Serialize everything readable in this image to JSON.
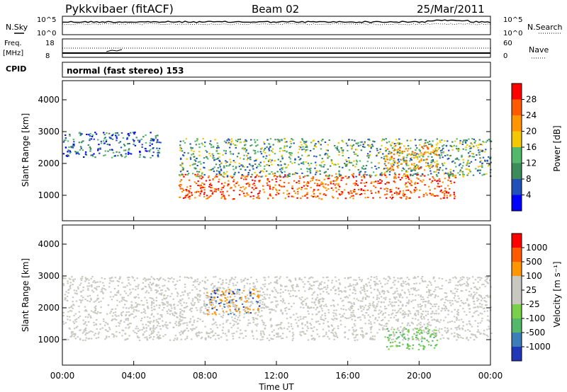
{
  "header": {
    "station": "Pykkvibaer (fitACF)",
    "beam": "Beam 02",
    "date": "25/Mar/2011"
  },
  "noise_panel": {
    "left_label": "N.Sky",
    "right_label": "N.Search",
    "left_ticks": [
      "10^5",
      "10^0"
    ],
    "right_ticks": [
      "10^5",
      "10^0"
    ]
  },
  "freq_panel": {
    "left_label_1": "Freq.",
    "left_label_2": "[MHz]",
    "right_label": "Nave",
    "left_ticks": [
      "18",
      "8"
    ],
    "right_ticks": [
      "60",
      "0"
    ]
  },
  "cpid": {
    "label": "CPID",
    "mode": "normal (fast stereo) 153"
  },
  "colors": {
    "power_scale": [
      "#0000ff",
      "#2050b8",
      "#3c8c5a",
      "#54b86a",
      "#f4c800",
      "#ff9600",
      "#ff5a00",
      "#ff0000"
    ],
    "velocity_scale": [
      "#ff0000",
      "#ff5a00",
      "#ff9600",
      "#c8c8c0",
      "#c8c8c0",
      "#7ad04a",
      "#54b86a",
      "#3c7eb8",
      "#2038b8"
    ]
  },
  "chart_data": [
    {
      "type": "heatmap",
      "title": "",
      "ylabel": "Slant Range [km]",
      "ylim": [
        200,
        4600
      ],
      "yticks": [
        "1000",
        "2000",
        "3000",
        "4000"
      ],
      "xlim": [
        0,
        24
      ],
      "colorbar": {
        "label": "Power [dB]",
        "ticks": [
          "4",
          "8",
          "12",
          "16",
          "20",
          "24",
          "28"
        ]
      },
      "bands": [
        {
          "t0": 0,
          "t1": 5.5,
          "r_lo": 2200,
          "r_hi": 3000,
          "level": "blue-green"
        },
        {
          "t0": 6.5,
          "t1": 22,
          "r_lo": 900,
          "r_hi": 1700,
          "level": "orange-red"
        },
        {
          "t0": 6.5,
          "t1": 24,
          "r_lo": 1600,
          "r_hi": 2800,
          "level": "blue-yellow"
        },
        {
          "t0": 18,
          "t1": 21,
          "r_lo": 1800,
          "r_hi": 2600,
          "level": "orange"
        }
      ]
    },
    {
      "type": "heatmap",
      "title": "",
      "ylabel": "Slant Range [km]",
      "ylim": [
        200,
        4600
      ],
      "yticks": [
        "1000",
        "2000",
        "3000",
        "4000"
      ],
      "xlabel": "Time UT",
      "xlim": [
        0,
        24
      ],
      "xticks": [
        "00:00",
        "04:00",
        "08:00",
        "12:00",
        "16:00",
        "20:00",
        "00:00"
      ],
      "colorbar": {
        "label": "Velocity [m s⁻¹]",
        "ticks": [
          "1000",
          "500",
          "100",
          "25",
          "-25",
          "-100",
          "-500",
          "-1000"
        ]
      },
      "bands": [
        {
          "t0": 0,
          "t1": 24,
          "r_lo": 1000,
          "r_hi": 3000,
          "level": "ground-scatter"
        },
        {
          "t0": 8,
          "t1": 11,
          "r_lo": 1800,
          "r_hi": 2600,
          "level": "blue-orange"
        },
        {
          "t0": 18,
          "t1": 21,
          "r_lo": 700,
          "r_hi": 1400,
          "level": "green"
        }
      ]
    }
  ]
}
